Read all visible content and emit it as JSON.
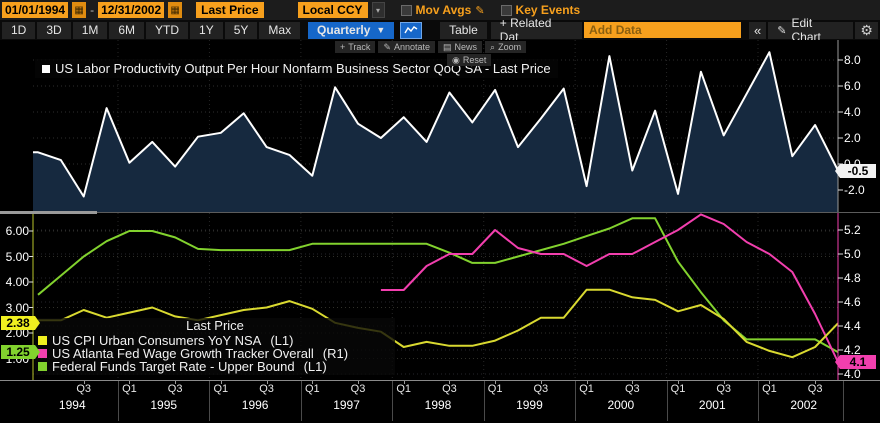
{
  "toolbar": {
    "start_date": "01/01/1994",
    "end_date": "12/31/2002",
    "range_separator": "-",
    "field_type": "Last Price",
    "currency": "Local CCY",
    "mov_avgs_label": "Mov Avgs",
    "key_events_label": "Key Events",
    "periods": [
      "1D",
      "3D",
      "1M",
      "6M",
      "YTD",
      "1Y",
      "5Y",
      "Max"
    ],
    "frequency": "Quarterly",
    "frequency_caret": "▼",
    "table_label": "Table",
    "related_data_label": "+ Related Dat",
    "add_data_placeholder": "Add Data",
    "collapse_label": "«",
    "edit_chart_label": "Edit Chart",
    "calendar_icon": "▦",
    "dropdown_caret": "▾",
    "pencil_icon": "✎",
    "gear_icon": "⚙"
  },
  "mini_toolbar": {
    "track": "Track",
    "annotate": "Annotate",
    "news": "News",
    "zoom": "Zoom",
    "reset": "Reset",
    "track_icon": "+",
    "annotate_icon": "✎",
    "news_icon": "▤",
    "zoom_icon": "⌕",
    "reset_icon": "◉"
  },
  "x_axis": {
    "years": [
      "1994",
      "1995",
      "1996",
      "1997",
      "1998",
      "1999",
      "2000",
      "2001",
      "2002"
    ],
    "q1_label": "Q1",
    "q3_label": "Q3"
  },
  "chart_data": [
    {
      "type": "area",
      "panel": "top",
      "title": "US Labor Productivity Output Per Hour Nonfarm Business Sector QoQ SA - Last Price",
      "axis_side": "right",
      "yticks": [
        "8.0",
        "6.0",
        "4.0",
        "2.0",
        "0.0",
        "-2.0"
      ],
      "ylim": [
        -3.8,
        9.5
      ],
      "last_price_label": "-0.5",
      "line_color": "#ffffff",
      "fill_color": "#16293f",
      "categories": [
        "1994 Q1",
        "1994 Q2",
        "1994 Q3",
        "1994 Q4",
        "1995 Q1",
        "1995 Q2",
        "1995 Q3",
        "1995 Q4",
        "1996 Q1",
        "1996 Q2",
        "1996 Q3",
        "1996 Q4",
        "1997 Q1",
        "1997 Q2",
        "1997 Q3",
        "1997 Q4",
        "1998 Q1",
        "1998 Q2",
        "1998 Q3",
        "1998 Q4",
        "1999 Q1",
        "1999 Q2",
        "1999 Q3",
        "1999 Q4",
        "2000 Q1",
        "2000 Q2",
        "2000 Q3",
        "2000 Q4",
        "2001 Q1",
        "2001 Q2",
        "2001 Q3",
        "2001 Q4",
        "2002 Q1",
        "2002 Q2",
        "2002 Q3",
        "2002 Q4"
      ],
      "values": [
        0.9,
        0.3,
        -2.5,
        4.3,
        0.1,
        1.7,
        -0.2,
        2.1,
        2.4,
        3.9,
        1.3,
        0.7,
        -0.9,
        5.9,
        3.1,
        2.0,
        3.6,
        1.7,
        5.5,
        3.2,
        5.7,
        1.3,
        3.5,
        5.8,
        -1.7,
        8.3,
        -0.5,
        4.1,
        -2.3,
        7.1,
        2.2,
        5.4,
        8.6,
        0.6,
        3.0,
        -0.5
      ]
    },
    {
      "type": "line",
      "panel": "bottom",
      "legend_title": "Last Price",
      "left_yticks": [
        "6.00",
        "5.00",
        "4.00",
        "3.00",
        "2.00",
        "1.00"
      ],
      "right_yticks": [
        "5.2",
        "5.0",
        "4.8",
        "4.6",
        "4.4",
        "4.2",
        "4.0"
      ],
      "left_ylim": [
        0.8,
        6.7
      ],
      "right_ylim": [
        3.95,
        5.35
      ],
      "series": [
        {
          "name": "US CPI Urban Consumers YoY NSA",
          "axis_label": "(L1)",
          "color": "#d9d930",
          "last_price_label": "2.38",
          "start_index": 0,
          "values": [
            2.5,
            2.5,
            2.9,
            2.6,
            2.8,
            3.0,
            2.65,
            2.5,
            2.7,
            2.9,
            3.0,
            3.25,
            2.95,
            2.4,
            2.2,
            2.05,
            1.45,
            1.65,
            1.5,
            1.5,
            1.7,
            2.1,
            2.6,
            2.6,
            3.7,
            3.7,
            3.4,
            3.3,
            2.85,
            3.1,
            2.55,
            1.65,
            1.3,
            1.05,
            1.45,
            2.38
          ]
        },
        {
          "name": "US Atlanta Fed Wage Growth Tracker Overall",
          "axis_label": "(R1)",
          "color": "#f23fae",
          "last_price_label": "4.1",
          "start_index": 15,
          "values": [
            4.7,
            4.7,
            4.9,
            5.0,
            5.0,
            5.2,
            5.05,
            5.0,
            5.0,
            4.9,
            5.0,
            5.0,
            5.1,
            5.2,
            5.33,
            5.25,
            5.1,
            5.0,
            4.85,
            4.5,
            4.1
          ]
        },
        {
          "name": "Federal Funds Target Rate - Upper Bound",
          "axis_label": "(L1)",
          "color": "#82d22e",
          "last_price_label": "1.25",
          "start_index": 0,
          "values": [
            3.5,
            4.25,
            5.0,
            5.6,
            6.0,
            6.0,
            5.75,
            5.3,
            5.25,
            5.25,
            5.25,
            5.25,
            5.5,
            5.5,
            5.5,
            5.5,
            5.5,
            5.5,
            5.15,
            4.75,
            4.75,
            5.0,
            5.25,
            5.5,
            5.8,
            6.1,
            6.5,
            6.5,
            4.8,
            3.6,
            2.5,
            1.75,
            1.75,
            1.75,
            1.75,
            1.25
          ]
        }
      ]
    }
  ]
}
